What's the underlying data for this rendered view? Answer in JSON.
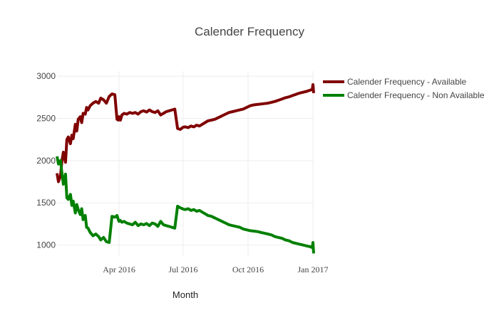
{
  "chart_data": {
    "type": "line",
    "title": "Calender Frequency",
    "xlabel": "Month",
    "ylabel": "",
    "x_tick_labels": [
      "Apr 2016",
      "Jul 2016",
      "Oct 2016",
      "Jan 2017"
    ],
    "x_ticks": [
      "2016-04-01",
      "2016-07-01",
      "2016-10-01",
      "2017-01-01"
    ],
    "xlim": [
      "2016-01-04",
      "2017-01-02"
    ],
    "y_ticks": [
      1000,
      1500,
      2000,
      2500,
      3000
    ],
    "ylim": [
      870,
      3060
    ],
    "grid": true,
    "legend_position": "top-right",
    "series": [
      {
        "name": "Calender Frequency - Available",
        "color": "#800000",
        "x": [
          "2016-01-04",
          "2016-01-06",
          "2016-01-09",
          "2016-01-11",
          "2016-01-13",
          "2016-01-16",
          "2016-01-18",
          "2016-01-20",
          "2016-01-23",
          "2016-01-25",
          "2016-01-27",
          "2016-01-30",
          "2016-02-01",
          "2016-02-03",
          "2016-02-06",
          "2016-02-08",
          "2016-02-10",
          "2016-02-13",
          "2016-02-15",
          "2016-02-17",
          "2016-02-20",
          "2016-02-24",
          "2016-02-28",
          "2016-03-03",
          "2016-03-06",
          "2016-03-10",
          "2016-03-14",
          "2016-03-18",
          "2016-03-22",
          "2016-03-26",
          "2016-03-29",
          "2016-03-31",
          "2016-04-01",
          "2016-04-03",
          "2016-04-05",
          "2016-04-08",
          "2016-04-12",
          "2016-04-16",
          "2016-04-20",
          "2016-04-24",
          "2016-04-28",
          "2016-05-02",
          "2016-05-06",
          "2016-05-10",
          "2016-05-14",
          "2016-05-18",
          "2016-05-22",
          "2016-05-26",
          "2016-05-30",
          "2016-06-03",
          "2016-06-07",
          "2016-06-11",
          "2016-06-15",
          "2016-06-19",
          "2016-06-23",
          "2016-06-27",
          "2016-06-30",
          "2016-07-01",
          "2016-07-04",
          "2016-07-08",
          "2016-07-12",
          "2016-07-16",
          "2016-07-20",
          "2016-07-24",
          "2016-07-28",
          "2016-08-01",
          "2016-08-05",
          "2016-08-10",
          "2016-08-15",
          "2016-08-20",
          "2016-08-25",
          "2016-08-30",
          "2016-09-04",
          "2016-09-09",
          "2016-09-14",
          "2016-09-19",
          "2016-09-24",
          "2016-09-29",
          "2016-10-04",
          "2016-10-09",
          "2016-10-14",
          "2016-10-19",
          "2016-10-24",
          "2016-10-29",
          "2016-11-03",
          "2016-11-08",
          "2016-11-13",
          "2016-11-18",
          "2016-11-23",
          "2016-11-28",
          "2016-12-03",
          "2016-12-08",
          "2016-12-13",
          "2016-12-18",
          "2016-12-23",
          "2016-12-28",
          "2016-12-31",
          "2017-01-01",
          "2017-01-02"
        ],
        "values": [
          1850,
          1750,
          1820,
          2000,
          2100,
          1980,
          2250,
          2280,
          2200,
          2300,
          2260,
          2430,
          2350,
          2490,
          2520,
          2450,
          2560,
          2550,
          2630,
          2600,
          2650,
          2680,
          2700,
          2680,
          2740,
          2720,
          2680,
          2760,
          2790,
          2780,
          2490,
          2480,
          2520,
          2480,
          2540,
          2560,
          2550,
          2570,
          2560,
          2570,
          2550,
          2580,
          2590,
          2575,
          2600,
          2580,
          2570,
          2590,
          2540,
          2560,
          2580,
          2590,
          2600,
          2610,
          2380,
          2370,
          2390,
          2395,
          2400,
          2390,
          2410,
          2400,
          2420,
          2410,
          2430,
          2450,
          2470,
          2480,
          2490,
          2510,
          2530,
          2550,
          2570,
          2580,
          2590,
          2600,
          2610,
          2630,
          2650,
          2660,
          2665,
          2670,
          2675,
          2680,
          2690,
          2700,
          2715,
          2730,
          2745,
          2755,
          2770,
          2785,
          2800,
          2810,
          2820,
          2835,
          2840,
          2900,
          2800
        ]
      },
      {
        "name": "Calender Frequency - Non Available",
        "color": "#008000",
        "x": [
          "2016-01-04",
          "2016-01-06",
          "2016-01-09",
          "2016-01-11",
          "2016-01-13",
          "2016-01-16",
          "2016-01-18",
          "2016-01-20",
          "2016-01-23",
          "2016-01-25",
          "2016-01-27",
          "2016-01-30",
          "2016-02-01",
          "2016-02-03",
          "2016-02-06",
          "2016-02-08",
          "2016-02-10",
          "2016-02-13",
          "2016-02-15",
          "2016-02-17",
          "2016-02-20",
          "2016-02-24",
          "2016-02-28",
          "2016-03-03",
          "2016-03-06",
          "2016-03-10",
          "2016-03-14",
          "2016-03-18",
          "2016-03-22",
          "2016-03-26",
          "2016-03-29",
          "2016-03-31",
          "2016-04-01",
          "2016-04-03",
          "2016-04-05",
          "2016-04-08",
          "2016-04-12",
          "2016-04-16",
          "2016-04-20",
          "2016-04-24",
          "2016-04-28",
          "2016-05-02",
          "2016-05-06",
          "2016-05-10",
          "2016-05-14",
          "2016-05-18",
          "2016-05-22",
          "2016-05-26",
          "2016-05-30",
          "2016-06-03",
          "2016-06-07",
          "2016-06-11",
          "2016-06-15",
          "2016-06-19",
          "2016-06-23",
          "2016-06-27",
          "2016-06-30",
          "2016-07-01",
          "2016-07-04",
          "2016-07-08",
          "2016-07-12",
          "2016-07-16",
          "2016-07-20",
          "2016-07-24",
          "2016-07-28",
          "2016-08-01",
          "2016-08-05",
          "2016-08-10",
          "2016-08-15",
          "2016-08-20",
          "2016-08-25",
          "2016-08-30",
          "2016-09-04",
          "2016-09-09",
          "2016-09-14",
          "2016-09-19",
          "2016-09-24",
          "2016-09-29",
          "2016-10-04",
          "2016-10-09",
          "2016-10-14",
          "2016-10-19",
          "2016-10-24",
          "2016-10-29",
          "2016-11-03",
          "2016-11-08",
          "2016-11-13",
          "2016-11-18",
          "2016-11-23",
          "2016-11-28",
          "2016-12-03",
          "2016-12-08",
          "2016-12-13",
          "2016-12-18",
          "2016-12-23",
          "2016-12-28",
          "2016-12-31",
          "2017-01-01",
          "2017-01-02"
        ],
        "values": [
          2050,
          1960,
          2000,
          1850,
          1720,
          1840,
          1560,
          1540,
          1600,
          1470,
          1520,
          1380,
          1480,
          1420,
          1360,
          1430,
          1300,
          1350,
          1210,
          1200,
          1150,
          1110,
          1130,
          1100,
          1060,
          1090,
          1040,
          1030,
          1340,
          1330,
          1350,
          1300,
          1280,
          1290,
          1270,
          1280,
          1260,
          1250,
          1240,
          1270,
          1230,
          1250,
          1240,
          1255,
          1230,
          1260,
          1250,
          1220,
          1280,
          1240,
          1230,
          1220,
          1210,
          1200,
          1460,
          1440,
          1430,
          1425,
          1420,
          1430,
          1410,
          1420,
          1400,
          1410,
          1390,
          1370,
          1350,
          1340,
          1320,
          1300,
          1280,
          1260,
          1240,
          1230,
          1220,
          1210,
          1190,
          1180,
          1170,
          1165,
          1160,
          1150,
          1140,
          1130,
          1120,
          1100,
          1090,
          1080,
          1060,
          1050,
          1030,
          1020,
          1010,
          1000,
          990,
          980,
          970,
          1030,
          900
        ]
      }
    ]
  }
}
